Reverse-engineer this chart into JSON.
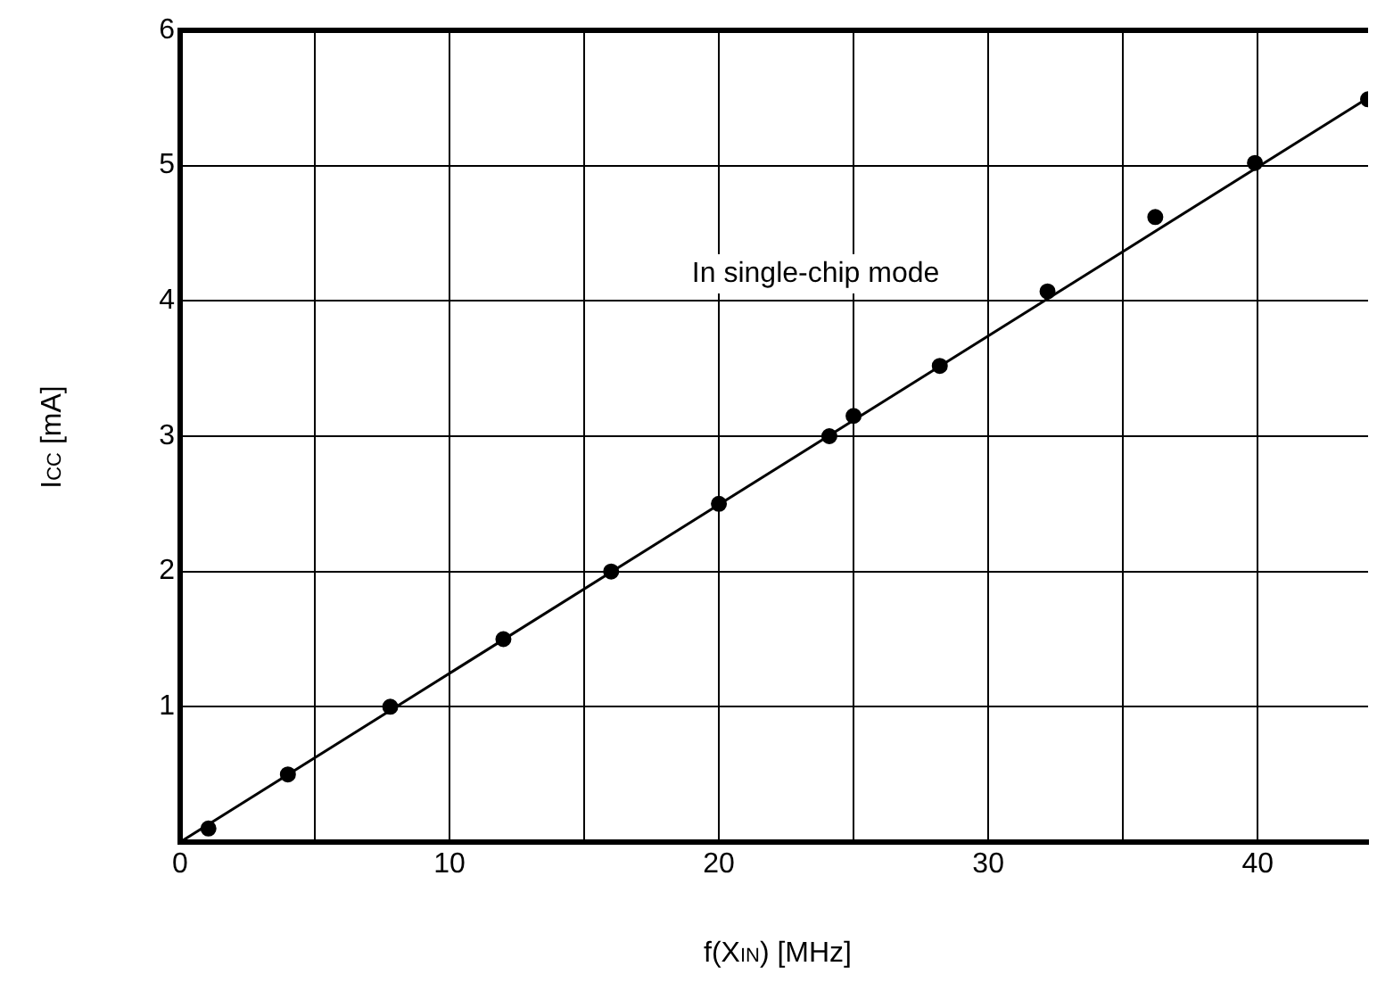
{
  "chart_data": {
    "type": "scatter",
    "xlabel": "f(X$_{IN}$)   [MHz]",
    "ylabel": "I$_{CC}$   [mA]",
    "xlim": [
      0,
      44.1
    ],
    "ylim": [
      0,
      6
    ],
    "xticks": [
      0,
      {
        "value": 5,
        "label": null
      },
      10,
      {
        "value": 15,
        "label": null
      },
      20,
      {
        "value": 25,
        "label": null
      },
      30,
      {
        "value": 35,
        "label": null
      },
      40
    ],
    "yticks": [
      {
        "value": 0,
        "label": null
      },
      1,
      2,
      3,
      4,
      5,
      6
    ],
    "grid": true,
    "legend": false,
    "annotations": [
      "In single-chip mode"
    ],
    "series": [
      {
        "color": "#000000",
        "marker": "circle",
        "x": [
          1.05,
          4.0,
          7.8,
          12.0,
          16.0,
          20.0,
          24.1,
          25.0,
          28.2,
          32.2,
          36.2,
          39.9,
          44.1
        ],
        "values": [
          0.1,
          0.5,
          1.0,
          1.5,
          2.0,
          2.5,
          3.0,
          3.15,
          3.52,
          4.07,
          4.62,
          5.02,
          5.49
        ]
      },
      {
        "type": "line",
        "color": "#000000",
        "marker": "none",
        "line_style": "solid",
        "x": [
          0,
          44.1
        ],
        "values": [
          0,
          5.5
        ]
      }
    ]
  }
}
